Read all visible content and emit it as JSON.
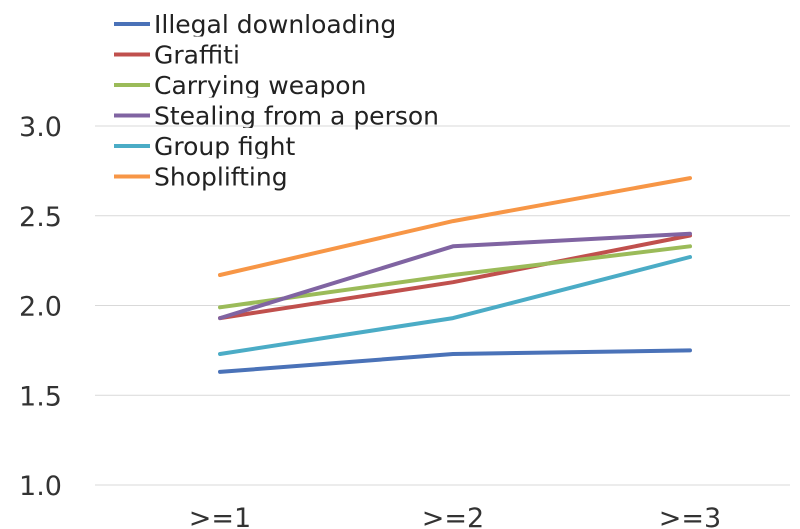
{
  "chart_data": {
    "type": "line",
    "categories": [
      ">=1",
      ">=2",
      ">=3"
    ],
    "ylim": [
      1.0,
      3.0
    ],
    "yticks": [
      "1.0",
      "1.5",
      "2.0",
      "2.5",
      "3.0"
    ],
    "ytick_values": [
      1.0,
      1.5,
      2.0,
      2.5,
      3.0
    ],
    "grid": true,
    "legend_position": "top-left",
    "series": [
      {
        "name": "Illegal downloading",
        "color": "#4a72b8",
        "values": [
          1.63,
          1.73,
          1.75
        ]
      },
      {
        "name": "Graffiti",
        "color": "#c0504d",
        "values": [
          1.93,
          2.13,
          2.39
        ]
      },
      {
        "name": "Carrying weapon",
        "color": "#9bbb59",
        "values": [
          1.99,
          2.17,
          2.33
        ]
      },
      {
        "name": "Stealing from a person",
        "color": "#8064a2",
        "values": [
          1.93,
          2.33,
          2.4
        ]
      },
      {
        "name": "Group fight",
        "color": "#4bacc6",
        "values": [
          1.73,
          1.93,
          2.27
        ]
      },
      {
        "name": "Shoplifting",
        "color": "#f79646",
        "values": [
          2.17,
          2.47,
          2.71
        ]
      }
    ]
  }
}
